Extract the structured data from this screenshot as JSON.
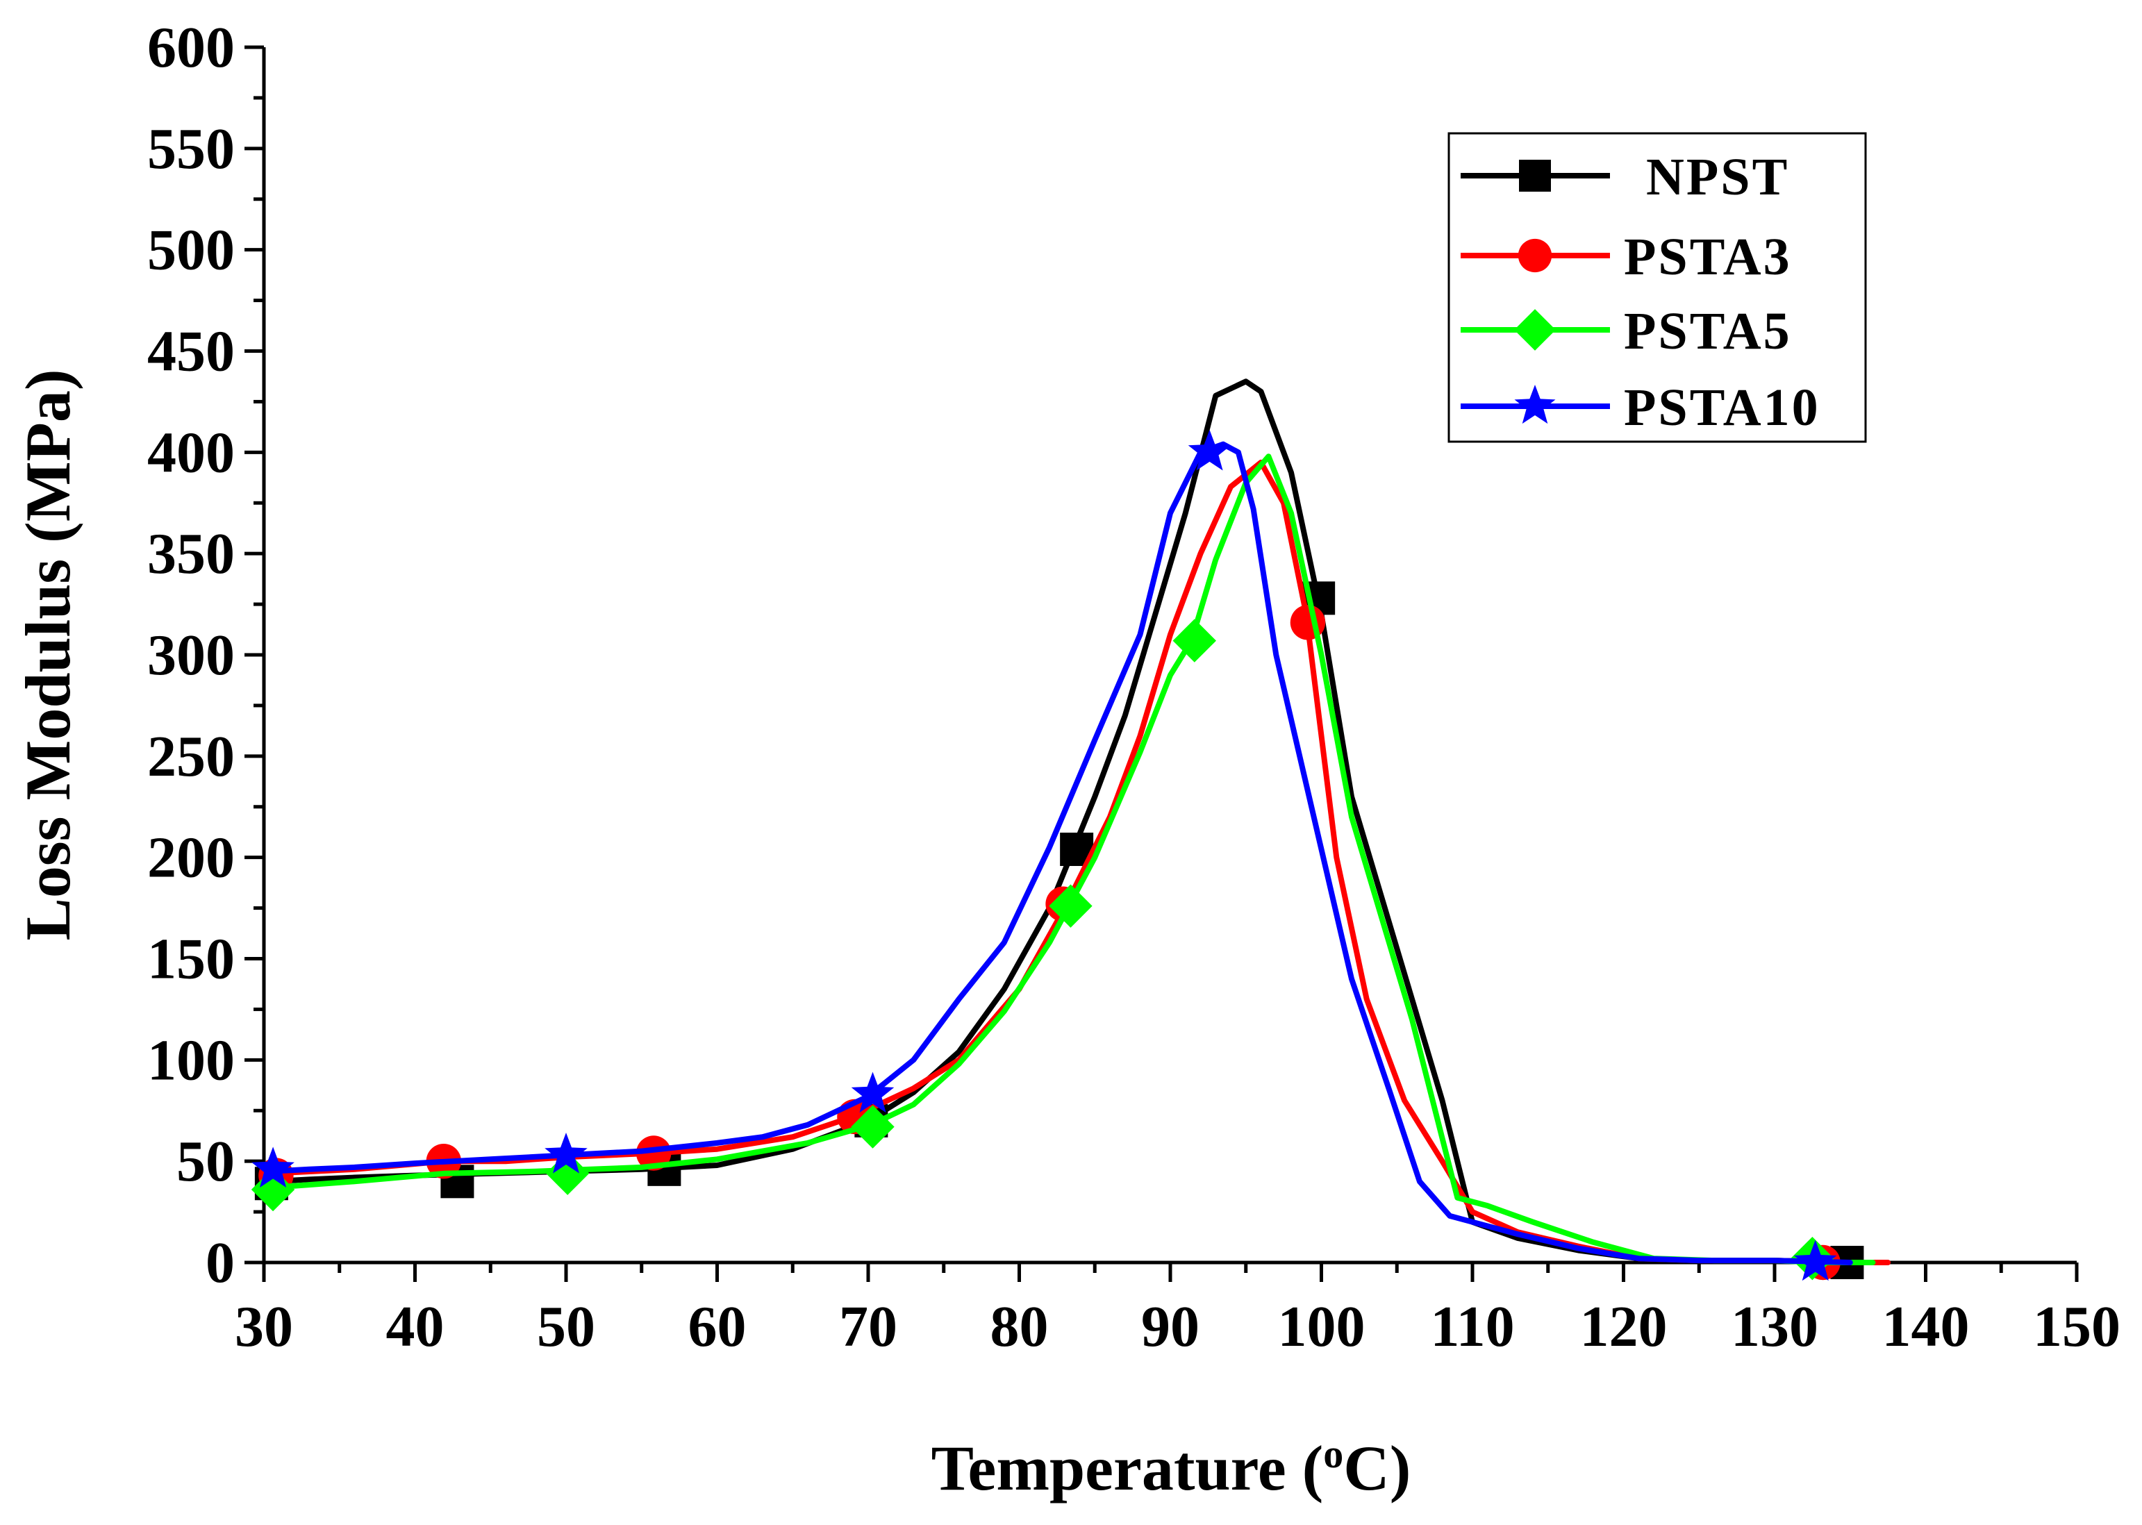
{
  "chart_data": {
    "type": "line",
    "title": "",
    "xlabel": "Temperature (°C)",
    "xlabel_parts": {
      "main": "Temperature (",
      "sup": "o",
      "unit": "C)"
    },
    "ylabel": "Loss Modulus (MPa)",
    "xlim": [
      30,
      150
    ],
    "ylim": [
      0,
      600
    ],
    "x_ticks": [
      30,
      40,
      50,
      60,
      70,
      80,
      90,
      100,
      110,
      120,
      130,
      140,
      150
    ],
    "y_ticks": [
      0,
      50,
      100,
      150,
      200,
      250,
      300,
      350,
      400,
      450,
      500,
      550,
      600
    ],
    "grid": false,
    "legend_position": "top-right",
    "series": [
      {
        "name": "NPST",
        "color": "#000000",
        "marker": "square",
        "x": [
          30.5,
          33,
          36,
          40,
          45,
          50,
          55,
          60,
          65,
          70,
          73,
          76,
          79,
          82,
          85,
          87,
          89,
          91,
          93,
          95,
          96,
          98,
          100,
          102,
          104,
          106,
          108,
          110,
          113,
          117,
          121,
          125,
          130,
          135
        ],
        "y": [
          40,
          41,
          42,
          43,
          44,
          45,
          46,
          48,
          56,
          70,
          84,
          104,
          135,
          175,
          230,
          270,
          320,
          370,
          428,
          435,
          430,
          390,
          320,
          230,
          180,
          130,
          80,
          20,
          12,
          6,
          2,
          1,
          1,
          0
        ],
        "markers_x": [
          30.5,
          42.8,
          56.5,
          70.2,
          83.8,
          99.8,
          134.8
        ],
        "markers_y": [
          39,
          40,
          46,
          70,
          204,
          328,
          0
        ]
      },
      {
        "name": "PSTA3",
        "color": "#ff0000",
        "marker": "circle",
        "x": [
          30.5,
          36,
          42,
          46,
          50,
          55.8,
          60,
          65,
          69,
          73,
          76,
          80,
          83,
          86,
          88,
          90,
          92,
          94,
          96,
          97.5,
          99,
          101,
          103,
          105.5,
          108,
          110,
          113,
          117,
          121,
          125,
          130,
          134,
          137.5
        ],
        "y": [
          44,
          46,
          50,
          50,
          52,
          54,
          56,
          62,
          72,
          86,
          100,
          135,
          175,
          220,
          260,
          310,
          350,
          383,
          395,
          375,
          320,
          200,
          130,
          80,
          50,
          25,
          15,
          8,
          2,
          1,
          1,
          0,
          0
        ],
        "markers_x": [
          30.8,
          41.9,
          55.8,
          69.1,
          82.9,
          99.1,
          133.2
        ],
        "markers_y": [
          43,
          50,
          54,
          72,
          177,
          316,
          0
        ]
      },
      {
        "name": "PSTA5",
        "color": "#00ff00",
        "marker": "diamond",
        "x": [
          30.5,
          36,
          42,
          48,
          55,
          60,
          66,
          70.2,
          73,
          76,
          79,
          82,
          85,
          88,
          90,
          91.4,
          93,
          95,
          96.5,
          98,
          100,
          102,
          104,
          106,
          109,
          111,
          114,
          118,
          122,
          126,
          130,
          133,
          136.5
        ],
        "y": [
          37,
          40,
          44,
          45,
          47,
          51,
          59,
          68,
          78,
          98,
          124,
          158,
          200,
          252,
          290,
          307,
          347,
          385,
          398,
          370,
          300,
          220,
          170,
          120,
          32,
          28,
          20,
          10,
          2,
          1,
          1,
          0,
          0
        ],
        "markers_x": [
          30.6,
          50.1,
          70.3,
          83.4,
          91.6,
          132.5
        ],
        "markers_y": [
          36,
          44,
          67,
          176,
          307,
          2
        ]
      },
      {
        "name": "PSTA10",
        "color": "#0000ff",
        "marker": "star",
        "x": [
          30.5,
          33,
          36,
          40,
          45,
          50,
          55,
          60,
          63,
          66,
          70,
          73,
          76,
          79,
          82,
          85,
          88,
          90,
          92,
          93.5,
          94.5,
          95.5,
          97,
          99.5,
          102,
          104.5,
          106.5,
          108.5,
          110,
          113,
          117,
          121,
          125,
          130,
          135
        ],
        "y": [
          45,
          46,
          47,
          49,
          51,
          53,
          55,
          59,
          62,
          68,
          82,
          100,
          130,
          158,
          205,
          258,
          310,
          370,
          400,
          404,
          400,
          372,
          300,
          220,
          140,
          85,
          40,
          23,
          20,
          14,
          7,
          2,
          1,
          1,
          0
        ],
        "markers_x": [
          30.6,
          50,
          70.3,
          92.6,
          132.7
        ],
        "markers_y": [
          46,
          53,
          83,
          400,
          0
        ]
      }
    ]
  }
}
